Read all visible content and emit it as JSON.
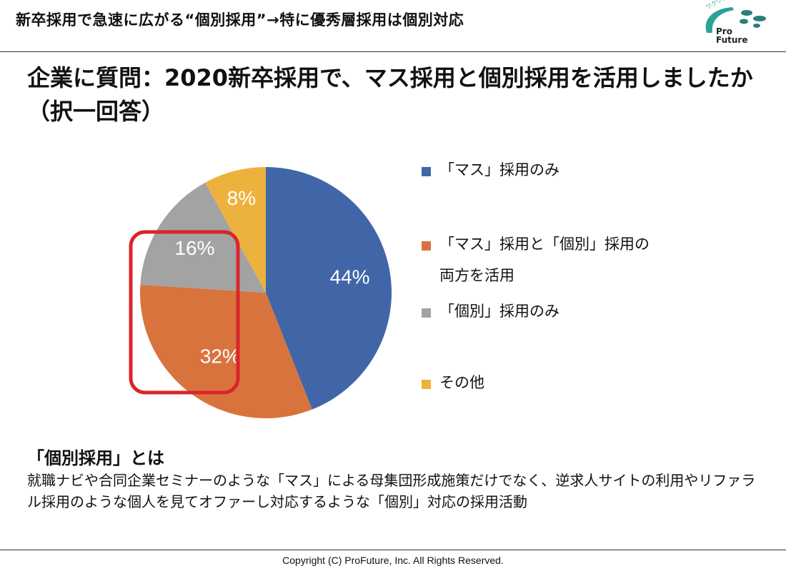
{
  "header": {
    "title": "新卒採用で急速に広がる“個別採用”→特に優秀層採用は個別対応",
    "logo": {
      "text_line1": "Pro",
      "text_line2": "Future",
      "tagline": "ワクワクする、プロの未来へ"
    }
  },
  "question": "企業に質問：2020新卒採用で、マス採用と個別採用を活用しましたか（択一回答）",
  "chart_data": {
    "type": "pie",
    "values": [
      44,
      32,
      16,
      8
    ],
    "labels": [
      "「マス」採用のみ",
      "「マス」採用と「個別」採用の両方を活用",
      "「個別」採用のみ",
      "その他"
    ],
    "data_labels": [
      "44%",
      "32%",
      "16%",
      "8%"
    ],
    "colors": [
      "#4166a8",
      "#d9733d",
      "#a3a3a3",
      "#edb23e"
    ],
    "start": "12 o'clock, clockwise",
    "legend": "right",
    "highlight": {
      "description": "red rounded rectangle around 「個別」 related slices",
      "color": "#d9252b"
    }
  },
  "legend": {
    "items": [
      {
        "line1": "「マス」採用のみ",
        "line2": ""
      },
      {
        "line1": "「マス」採用と「個別」採用の",
        "line2": "両方を活用"
      },
      {
        "line1": "「個別」採用のみ",
        "line2": ""
      },
      {
        "line1": "その他",
        "line2": ""
      }
    ]
  },
  "definition": {
    "heading": "「個別採用」とは",
    "body": "就職ナビや合同企業セミナーのような「マス」による母集団形成施策だけでなく、逆求人サイトの利用やリファラル採用のような個人を見てオファーし対応するような「個別」対応の採用活動"
  },
  "footer": "Copyright (C) ProFuture, Inc. All Rights Reserved."
}
